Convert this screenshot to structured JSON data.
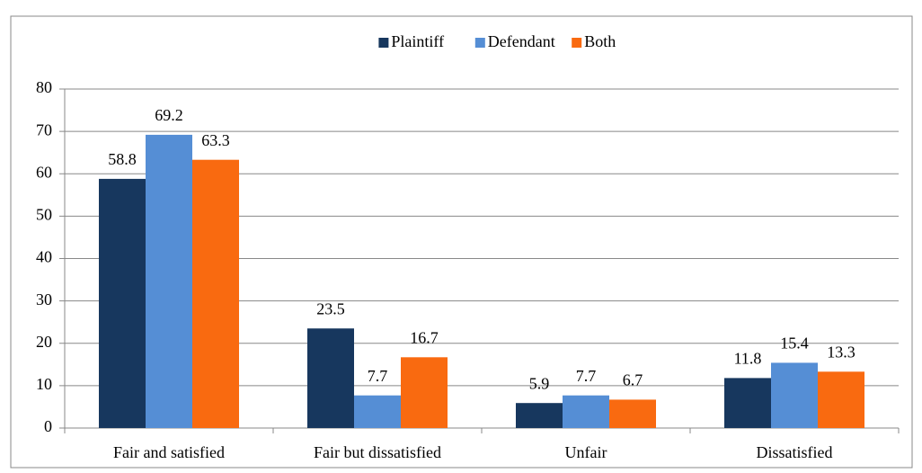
{
  "chart_data": {
    "type": "bar",
    "categories": [
      "Fair and satisfied",
      "Fair but dissatisfied",
      "Unfair",
      "Dissatisfied"
    ],
    "series": [
      {
        "name": "Plaintiff",
        "color": "#17375e",
        "values": [
          58.8,
          23.5,
          5.9,
          11.8
        ]
      },
      {
        "name": "Defendant",
        "color": "#558ed5",
        "values": [
          69.2,
          7.7,
          7.7,
          15.4
        ]
      },
      {
        "name": "Both",
        "color": "#f96a10",
        "values": [
          63.3,
          16.7,
          6.7,
          13.3
        ]
      }
    ],
    "ylim": [
      0,
      80
    ],
    "yticks": [
      0,
      10,
      20,
      30,
      40,
      50,
      60,
      70,
      80
    ],
    "grid": true,
    "legend": "top"
  }
}
